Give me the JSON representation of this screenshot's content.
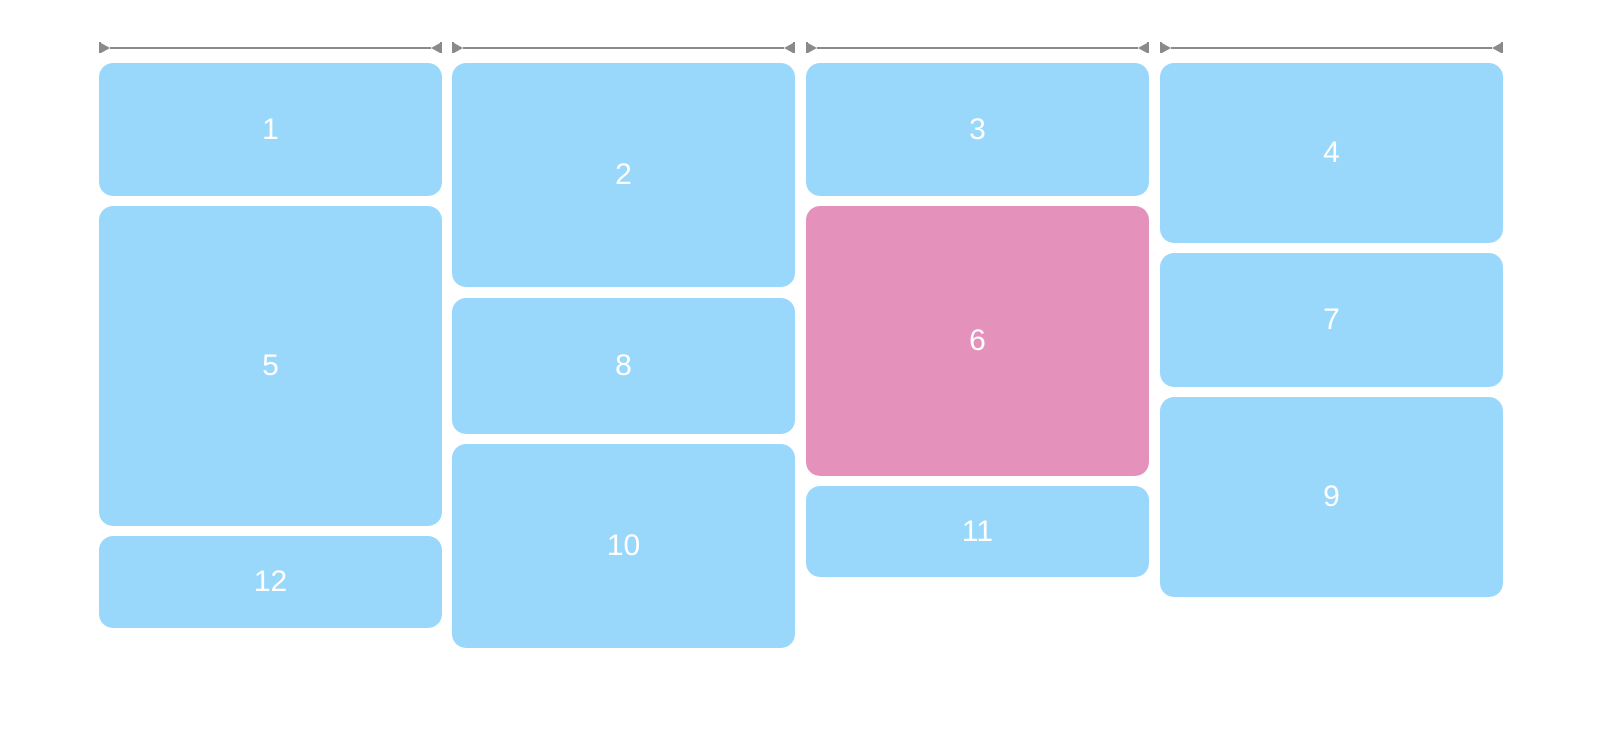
{
  "page": {
    "description": "Masonry column layout demo with numbered cards and column-width dimension rulers"
  },
  "colors": {
    "card_blue": "#9ad8fb",
    "card_highlight_pink": "#e492bb",
    "ruler_gray": "#8a8a8a",
    "label_white": "#ffffff",
    "background": "#ffffff"
  },
  "rulers": {
    "count": 4,
    "style": "double-ended dimension arrows with end ticks"
  },
  "highlighted_card": "6",
  "cards": [
    {
      "label": "1",
      "color": "blue",
      "column": 1
    },
    {
      "label": "2",
      "color": "blue",
      "column": 2
    },
    {
      "label": "3",
      "color": "blue",
      "column": 3
    },
    {
      "label": "4",
      "color": "blue",
      "column": 4
    },
    {
      "label": "5",
      "color": "blue",
      "column": 1
    },
    {
      "label": "6",
      "color": "pink",
      "column": 3
    },
    {
      "label": "7",
      "color": "blue",
      "column": 4
    },
    {
      "label": "8",
      "color": "blue",
      "column": 2
    },
    {
      "label": "9",
      "color": "blue",
      "column": 4
    },
    {
      "label": "10",
      "color": "blue",
      "column": 2
    },
    {
      "label": "11",
      "color": "blue",
      "column": 3
    },
    {
      "label": "12",
      "color": "blue",
      "column": 1
    }
  ]
}
